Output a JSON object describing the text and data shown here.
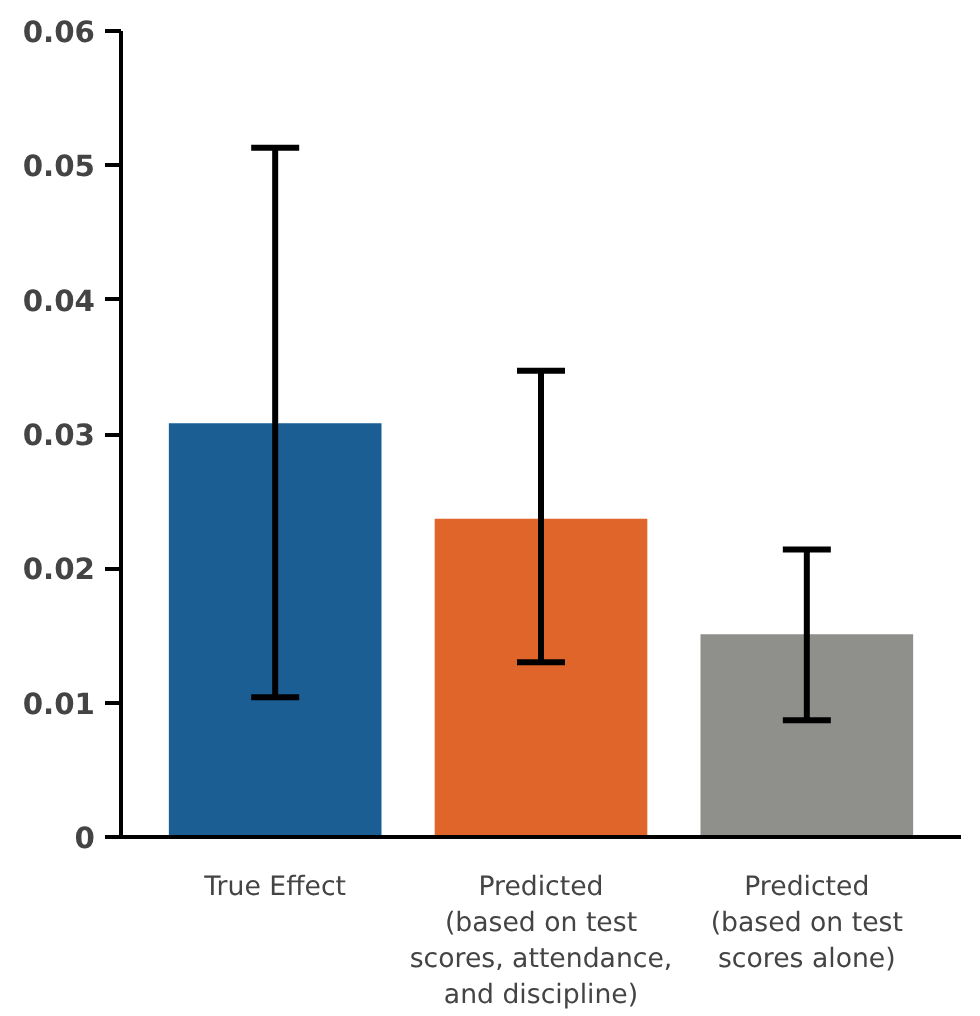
{
  "chart_data": {
    "type": "bar",
    "categories": [
      "True Effect",
      "Predicted\n(based on test\nscores, attendance,\nand discipline)",
      "Predicted\n(based on test\nscores alone)"
    ],
    "values": [
      0.0308,
      0.0237,
      0.0151
    ],
    "colors": [
      "#1a5e94",
      "#e0652a",
      "#8f908c"
    ],
    "errors": [
      [
        0.0104,
        0.0513
      ],
      [
        0.013,
        0.0347
      ],
      [
        0.0087,
        0.0214
      ]
    ],
    "ylim": [
      0,
      0.06
    ],
    "yticks": [
      0,
      0.01,
      0.02,
      0.03,
      0.04,
      0.05,
      0.06
    ],
    "grid": false
  }
}
